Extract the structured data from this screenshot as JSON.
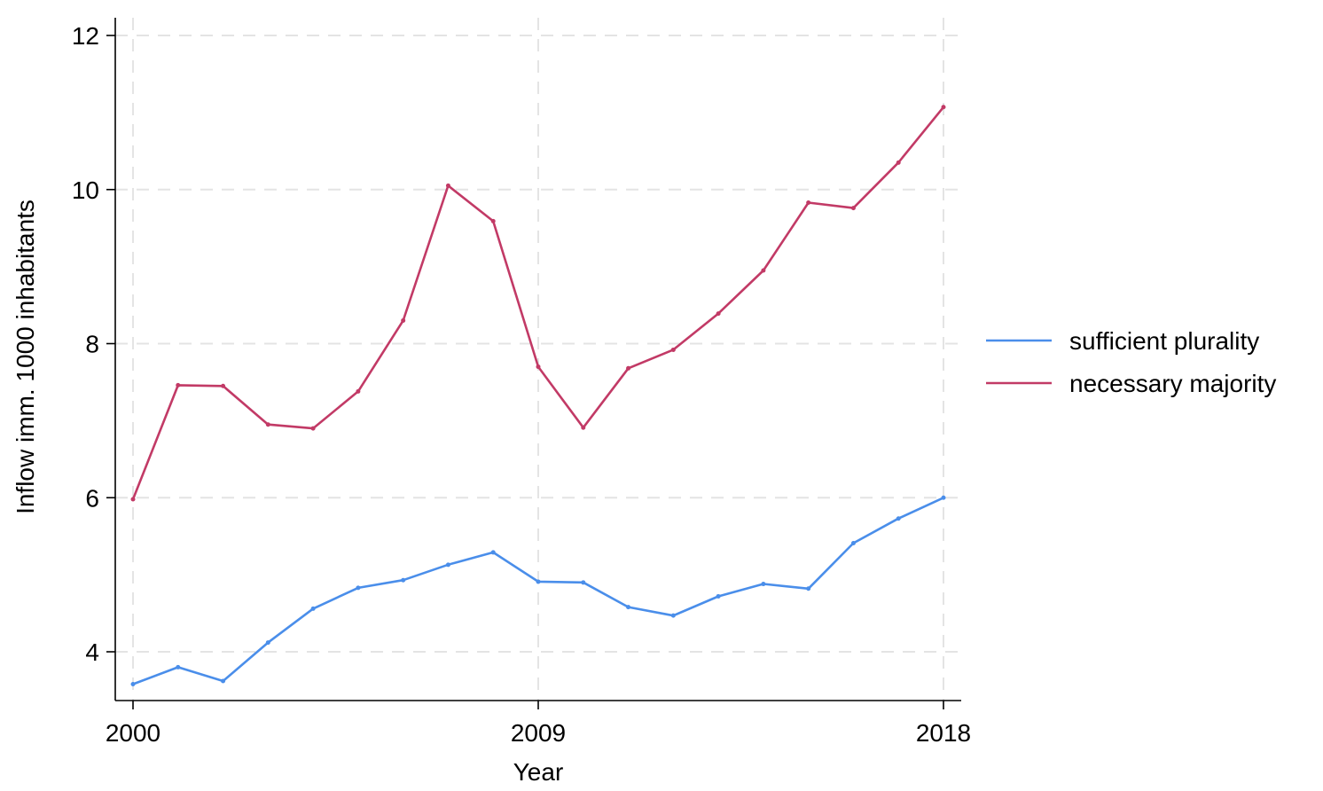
{
  "chart_data": {
    "type": "line",
    "title": "",
    "xlabel": "Year",
    "ylabel": "Inflow imm. 1000 inhabitants",
    "xlim": [
      2000,
      2018
    ],
    "ylim": [
      3.6,
      12.1
    ],
    "x_ticks": [
      2000,
      2009,
      2018
    ],
    "y_ticks": [
      4,
      6,
      8,
      10,
      12
    ],
    "x_tick_labels": [
      "2000",
      "2009",
      "2018"
    ],
    "y_tick_labels": [
      "4",
      "6",
      "8",
      "10",
      "12"
    ],
    "grid": true,
    "legend_position": "right",
    "x": [
      2000,
      2001,
      2002,
      2003,
      2004,
      2005,
      2006,
      2007,
      2008,
      2009,
      2010,
      2011,
      2012,
      2013,
      2014,
      2015,
      2016,
      2017,
      2018
    ],
    "series": [
      {
        "name": "sufficient plurality",
        "color": "#4a8eea",
        "values": [
          3.58,
          3.8,
          3.62,
          4.12,
          4.56,
          4.83,
          4.93,
          5.13,
          5.29,
          4.91,
          4.9,
          4.58,
          4.47,
          4.72,
          4.88,
          4.82,
          5.41,
          5.73,
          6.0
        ]
      },
      {
        "name": "necessary majority",
        "color": "#c23a66",
        "values": [
          5.98,
          7.46,
          7.45,
          6.95,
          6.9,
          7.38,
          8.3,
          10.05,
          9.59,
          7.7,
          6.91,
          7.68,
          7.92,
          8.39,
          8.95,
          9.83,
          9.76,
          10.35,
          11.07
        ]
      }
    ]
  }
}
